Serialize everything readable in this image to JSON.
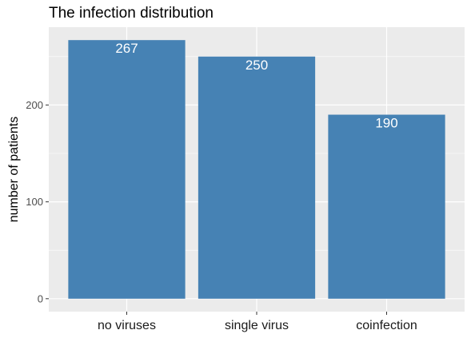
{
  "chart_data": {
    "type": "bar",
    "title": "The infection distribution",
    "xlabel": "",
    "ylabel": "number of patients",
    "categories": [
      "no viruses",
      "single virus",
      "coinfection"
    ],
    "values": [
      267,
      250,
      190
    ],
    "data_labels": [
      "267",
      "250",
      "190"
    ],
    "y_ticks": [
      0,
      100,
      200
    ],
    "ylim": [
      -13.35,
      280.35
    ],
    "grid": true,
    "legend": "none",
    "colors": {
      "bar": "#4682b4",
      "panel": "#ebebeb",
      "grid_major": "#ffffff",
      "label_text": "#ffffff"
    }
  }
}
